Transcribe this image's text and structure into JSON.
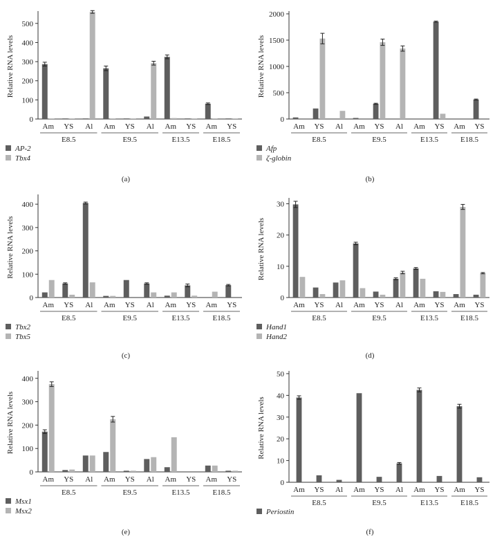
{
  "colors": {
    "dark": "#5e5e5e",
    "light": "#b4b4b4"
  },
  "chart_data": [
    {
      "type": "bar",
      "panel_label": "(a)",
      "ylabel": "Relative RNA levels",
      "ylim": [
        0,
        550
      ],
      "yticks": [
        0,
        100,
        200,
        300,
        400,
        500
      ],
      "groups": [
        {
          "label": "E8.5",
          "categories": [
            "Am",
            "YS",
            "Al"
          ]
        },
        {
          "label": "E9.5",
          "categories": [
            "Am",
            "YS",
            "Al"
          ]
        },
        {
          "label": "E13.5",
          "categories": [
            "Am",
            "YS"
          ]
        },
        {
          "label": "E18.5",
          "categories": [
            "Am",
            "YS"
          ]
        }
      ],
      "series": [
        {
          "name": "AP-2",
          "color": "dark",
          "values": [
            287,
            3,
            3,
            265,
            3,
            13,
            325,
            3,
            80,
            3
          ],
          "errors": [
            10,
            0,
            0,
            12,
            0,
            0,
            10,
            0,
            4,
            0
          ]
        },
        {
          "name": "Tbx4",
          "color": "light",
          "values": [
            3,
            3,
            560,
            3,
            3,
            292,
            5,
            3,
            3,
            3
          ],
          "errors": [
            0,
            0,
            7,
            0,
            0,
            10,
            0,
            0,
            0,
            0
          ]
        }
      ]
    },
    {
      "type": "bar",
      "panel_label": "(b)",
      "ylabel": "Relative RNA levels",
      "ylim": [
        0,
        2000
      ],
      "yticks": [
        0,
        500,
        1000,
        1500,
        2000
      ],
      "groups": [
        {
          "label": "E8.5",
          "categories": [
            "Am",
            "YS",
            "Al"
          ]
        },
        {
          "label": "E9.5",
          "categories": [
            "Am",
            "YS",
            "Al"
          ]
        },
        {
          "label": "E13.5",
          "categories": [
            "Am",
            "YS"
          ]
        },
        {
          "label": "E18.5",
          "categories": [
            "Am",
            "YS"
          ]
        }
      ],
      "series": [
        {
          "name": "Afp",
          "color": "dark",
          "values": [
            30,
            200,
            0,
            20,
            290,
            0,
            0,
            1850,
            0,
            370
          ],
          "errors": [
            0,
            0,
            0,
            0,
            10,
            0,
            0,
            12,
            0,
            10
          ]
        },
        {
          "name": "ζ-globin",
          "color": "light",
          "values": [
            0,
            1530,
            155,
            0,
            1460,
            1340,
            0,
            100,
            0,
            0
          ],
          "errors": [
            0,
            100,
            0,
            0,
            60,
            50,
            0,
            0,
            0,
            0
          ]
        }
      ]
    },
    {
      "type": "bar",
      "panel_label": "(c)",
      "ylabel": "Relative RNA levels",
      "ylim": [
        0,
        430
      ],
      "yticks": [
        0,
        100,
        200,
        300,
        400
      ],
      "groups": [
        {
          "label": "E8.5",
          "categories": [
            "Am",
            "YS",
            "Al"
          ]
        },
        {
          "label": "E9.5",
          "categories": [
            "Am",
            "YS",
            "Al"
          ]
        },
        {
          "label": "E13.5",
          "categories": [
            "Am",
            "YS"
          ]
        },
        {
          "label": "E18.5",
          "categories": [
            "Am",
            "YS"
          ]
        }
      ],
      "series": [
        {
          "name": "Tbx2",
          "color": "dark",
          "values": [
            22,
            60,
            405,
            7,
            75,
            60,
            8,
            52,
            0,
            53
          ],
          "errors": [
            0,
            3,
            4,
            0,
            0,
            3,
            0,
            6,
            0,
            3
          ]
        },
        {
          "name": "Tbx5",
          "color": "light",
          "values": [
            75,
            12,
            65,
            7,
            0,
            22,
            22,
            8,
            25,
            0
          ],
          "errors": [
            0,
            0,
            0,
            0,
            0,
            0,
            0,
            0,
            0,
            0
          ]
        }
      ]
    },
    {
      "type": "bar",
      "panel_label": "(d)",
      "ylabel": "Relative RNA levels",
      "ylim": [
        0,
        31
      ],
      "yticks": [
        0,
        10,
        20,
        30
      ],
      "groups": [
        {
          "label": "E8.5",
          "categories": [
            "Am",
            "YS",
            "Al"
          ]
        },
        {
          "label": "E9.5",
          "categories": [
            "Am",
            "YS",
            "Al"
          ]
        },
        {
          "label": "E13.5",
          "categories": [
            "Am",
            "YS"
          ]
        },
        {
          "label": "E18.5",
          "categories": [
            "Am",
            "YS"
          ]
        }
      ],
      "series": [
        {
          "name": "Hand1",
          "color": "dark",
          "values": [
            29.8,
            3.2,
            4.8,
            17.3,
            1.9,
            6.0,
            9.3,
            2.0,
            1.1,
            0.9
          ],
          "errors": [
            1.0,
            0,
            0,
            0.4,
            0,
            0.3,
            0.3,
            0,
            0,
            0
          ]
        },
        {
          "name": "Hand2",
          "color": "light",
          "values": [
            6.6,
            1.1,
            5.5,
            3.0,
            0.9,
            8.0,
            6.0,
            1.8,
            29.0,
            7.8
          ],
          "errors": [
            0,
            0,
            0,
            0,
            0,
            0.4,
            0,
            0,
            0.8,
            0.2
          ]
        }
      ]
    },
    {
      "type": "bar",
      "panel_label": "(e)",
      "ylabel": "Relative RNA levels",
      "ylim": [
        0,
        420
      ],
      "yticks": [
        0,
        100,
        200,
        300,
        400
      ],
      "groups": [
        {
          "label": "E8.5",
          "categories": [
            "Am",
            "YS",
            "Al"
          ]
        },
        {
          "label": "E9.5",
          "categories": [
            "Am",
            "YS",
            "Al"
          ]
        },
        {
          "label": "E13.5",
          "categories": [
            "Am",
            "YS"
          ]
        },
        {
          "label": "E18.5",
          "categories": [
            "Am",
            "YS"
          ]
        }
      ],
      "series": [
        {
          "name": "Msx1",
          "color": "dark",
          "values": [
            172,
            8,
            70,
            85,
            5,
            55,
            20,
            0,
            27,
            5
          ],
          "errors": [
            8,
            0,
            0,
            0,
            0,
            0,
            0,
            0,
            0,
            0
          ]
        },
        {
          "name": "Msx2",
          "color": "light",
          "values": [
            375,
            10,
            70,
            225,
            5,
            63,
            148,
            0,
            27,
            5
          ],
          "errors": [
            10,
            0,
            0,
            12,
            0,
            0,
            0,
            0,
            0,
            0
          ]
        }
      ]
    },
    {
      "type": "bar",
      "panel_label": "(f)",
      "ylabel": "Relative RNA levels",
      "ylim": [
        0,
        50
      ],
      "yticks": [
        0,
        10,
        20,
        30,
        40,
        50
      ],
      "groups": [
        {
          "label": "E8.5",
          "categories": [
            "Am",
            "YS",
            "Al"
          ]
        },
        {
          "label": "E9.5",
          "categories": [
            "Am",
            "YS",
            "Al"
          ]
        },
        {
          "label": "E13.5",
          "categories": [
            "Am",
            "YS"
          ]
        },
        {
          "label": "E18.5",
          "categories": [
            "Am",
            "YS"
          ]
        }
      ],
      "series": [
        {
          "name": "Periostin",
          "color": "dark",
          "values": [
            39,
            3.2,
            1.1,
            41,
            2.5,
            8.7,
            42.5,
            2.9,
            35,
            2.3
          ],
          "errors": [
            0.8,
            0,
            0,
            0,
            0,
            0.4,
            0.9,
            0,
            0.9,
            0
          ]
        }
      ]
    }
  ]
}
